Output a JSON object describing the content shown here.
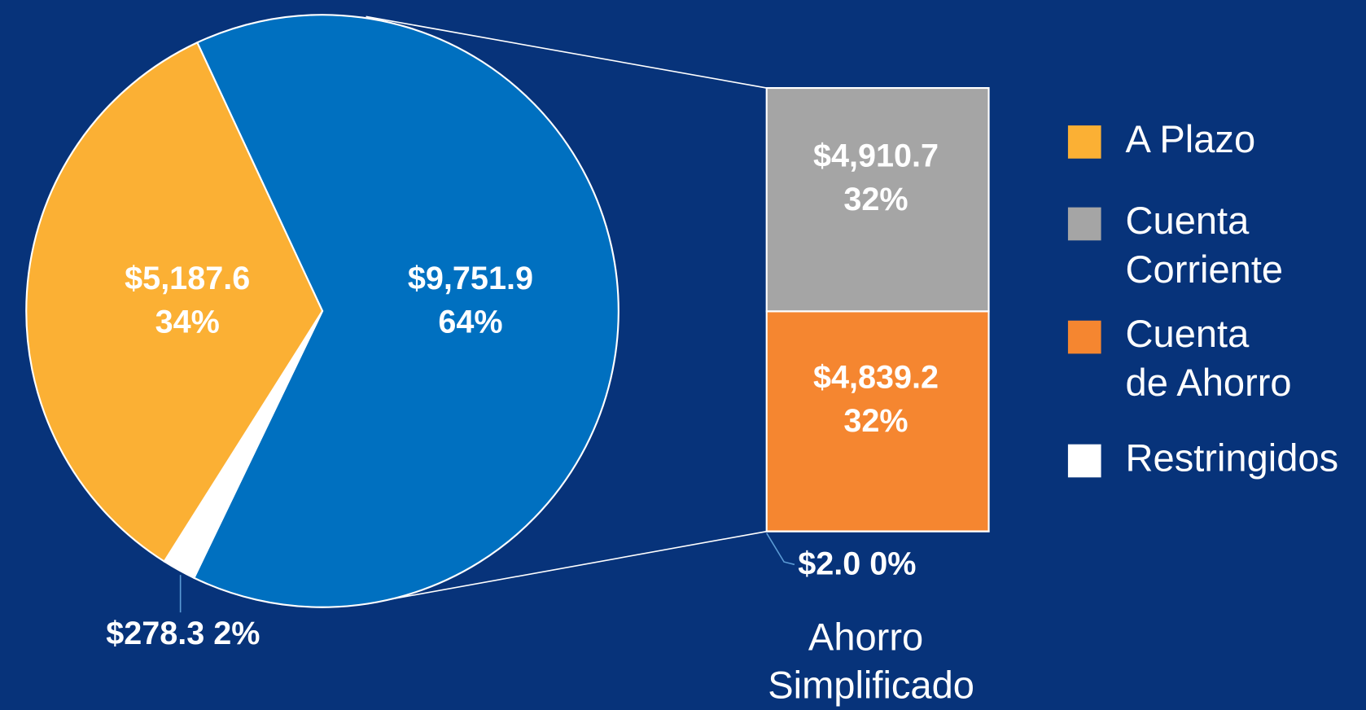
{
  "chart_data": {
    "type": "bar-of-pie",
    "pie": {
      "categories": [
        "A Plazo",
        "Ahorro Simplificado",
        "Restringidos"
      ],
      "values": [
        5187.6,
        9751.9,
        278.3
      ],
      "value_labels": [
        "$5,187.6",
        "$9,751.9",
        "$278.3"
      ],
      "percents": [
        34,
        64,
        2
      ],
      "percent_labels": [
        "34%",
        "64%",
        "2%"
      ],
      "colors": [
        "#fbb034",
        "#0070c0",
        "#ffffff"
      ]
    },
    "bar": {
      "categories": [
        "Cuenta Corriente",
        "Cuenta de Ahorro",
        "Restringidos"
      ],
      "values": [
        4910.7,
        4839.2,
        2.0
      ],
      "value_labels": [
        "$4,910.7",
        "$4,839.2",
        "$2.0"
      ],
      "percents": [
        32,
        32,
        0
      ],
      "percent_labels": [
        "32%",
        "32%",
        "0%"
      ],
      "colors": [
        "#a5a5a5",
        "#f58630",
        "#ffffff"
      ]
    }
  }
}
